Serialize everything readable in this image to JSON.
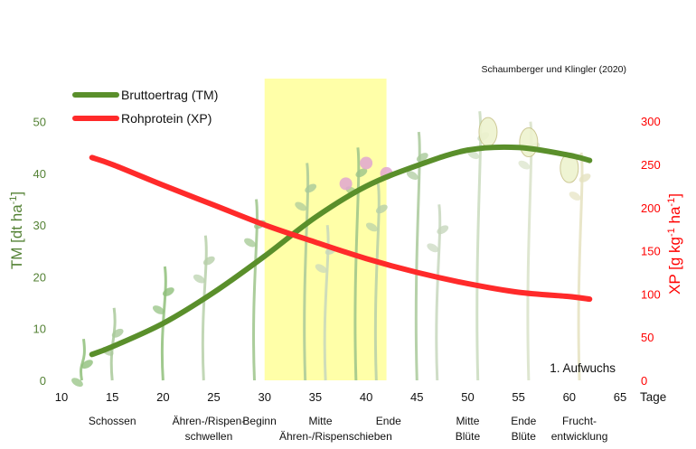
{
  "chart_data": {
    "type": "line",
    "source": "Schaumberger und Klingler (2020)",
    "annotation": "1. Aufwuchs",
    "x_unit_label": "Tage",
    "xlim": [
      10,
      65
    ],
    "x_ticks": [
      10,
      15,
      20,
      25,
      30,
      35,
      40,
      45,
      50,
      55,
      60,
      65
    ],
    "highlight_range": [
      30,
      42
    ],
    "highlight_color": "#ffffa8",
    "y_left": {
      "label_main": "TM [dt ha",
      "label_sup": "-1",
      "label_end": "]",
      "lim": [
        0,
        55
      ],
      "ticks": [
        0,
        10,
        20,
        30,
        40,
        50
      ],
      "color": "#548235"
    },
    "y_right": {
      "label_main": "XP [g kg",
      "label_sup": "-1",
      "label_mid": " ha",
      "label_sup2": "-1",
      "label_end": "]",
      "lim": [
        0,
        340
      ],
      "ticks": [
        0,
        50,
        100,
        150,
        200,
        250,
        300
      ],
      "color": "#ff0000"
    },
    "series": [
      {
        "name": "Bruttoertrag (TM)",
        "axis": "left",
        "color": "#5a8f2b",
        "x": [
          13,
          15,
          20,
          25,
          30,
          35,
          40,
          45,
          50,
          55,
          60,
          62
        ],
        "y": [
          5,
          6.5,
          11,
          17,
          24,
          31.5,
          37.5,
          41.5,
          44.5,
          45,
          43.5,
          42.5
        ]
      },
      {
        "name": "Rohprotein (XP)",
        "axis": "right",
        "color": "#ff2a2a",
        "x": [
          13,
          15,
          20,
          25,
          30,
          35,
          40,
          45,
          50,
          55,
          60,
          62
        ],
        "y": [
          258,
          250,
          226,
          203,
          180,
          160,
          141,
          125,
          112,
          102,
          97,
          94
        ]
      }
    ],
    "stages": [
      {
        "x": 15,
        "lines": [
          "Schossen"
        ]
      },
      {
        "x": 24.5,
        "lines": [
          "Ähren-/Rispen-",
          "schwellen"
        ]
      },
      {
        "x": 29.5,
        "lines": [
          "Beginn"
        ]
      },
      {
        "x": 35.5,
        "lines": [
          "Mitte"
        ]
      },
      {
        "x": 42.2,
        "lines": [
          "Ende"
        ]
      },
      {
        "x": 37,
        "lines": [
          "",
          "Ähren-/Rispenschieben"
        ]
      },
      {
        "x": 50,
        "lines": [
          "Mitte",
          "Blüte"
        ]
      },
      {
        "x": 55.5,
        "lines": [
          "Ende",
          "Blüte"
        ]
      },
      {
        "x": 61,
        "lines": [
          "Frucht-",
          "entwicklung"
        ]
      }
    ]
  }
}
